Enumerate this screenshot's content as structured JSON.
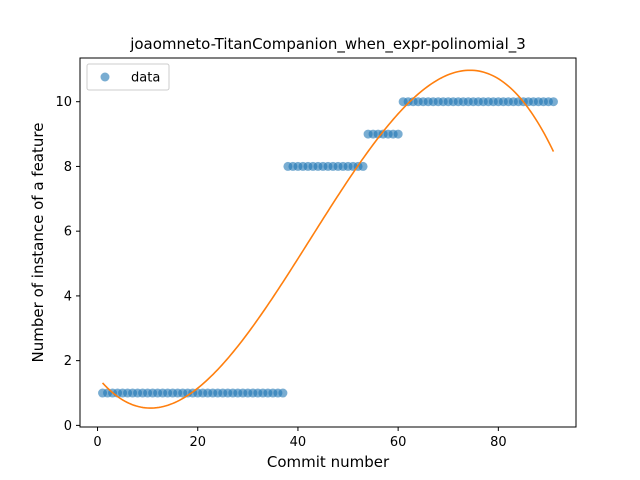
{
  "chart_data": {
    "type": "scatter",
    "title": "joaomneto-TitanCompanion_when_expr-polinomial_3",
    "xlabel": "Commit number",
    "ylabel": "Number of instance of a feature",
    "xlim": [
      -3.5,
      95.5
    ],
    "ylim": [
      -0.05,
      11.35
    ],
    "xticks": [
      0,
      20,
      40,
      60,
      80
    ],
    "yticks": [
      0,
      2,
      4,
      6,
      8,
      10
    ],
    "grid": false,
    "legend": {
      "placement": "top-left",
      "entries": [
        "data"
      ]
    },
    "colors": {
      "data": "#1f77b4",
      "fit": "#ff7f0e"
    },
    "series": [
      {
        "name": "data",
        "kind": "scatter",
        "segments": [
          {
            "x_start": 1,
            "x_end": 37,
            "y": 1
          },
          {
            "x_start": 38,
            "x_end": 53,
            "y": 8
          },
          {
            "x_start": 54,
            "x_end": 60,
            "y": 9
          },
          {
            "x_start": 61,
            "x_end": 91,
            "y": 10
          }
        ]
      },
      {
        "kind": "line",
        "polynomial_degree": 3,
        "x_range": [
          1,
          91
        ],
        "points": [
          {
            "x": 1,
            "y": 1.35
          },
          {
            "x": 11,
            "y": 0.5
          },
          {
            "x": 20,
            "y": 1.1
          },
          {
            "x": 40,
            "y": 5.2
          },
          {
            "x": 60,
            "y": 9.7
          },
          {
            "x": 75,
            "y": 10.85
          },
          {
            "x": 91,
            "y": 8.5
          }
        ]
      }
    ]
  }
}
